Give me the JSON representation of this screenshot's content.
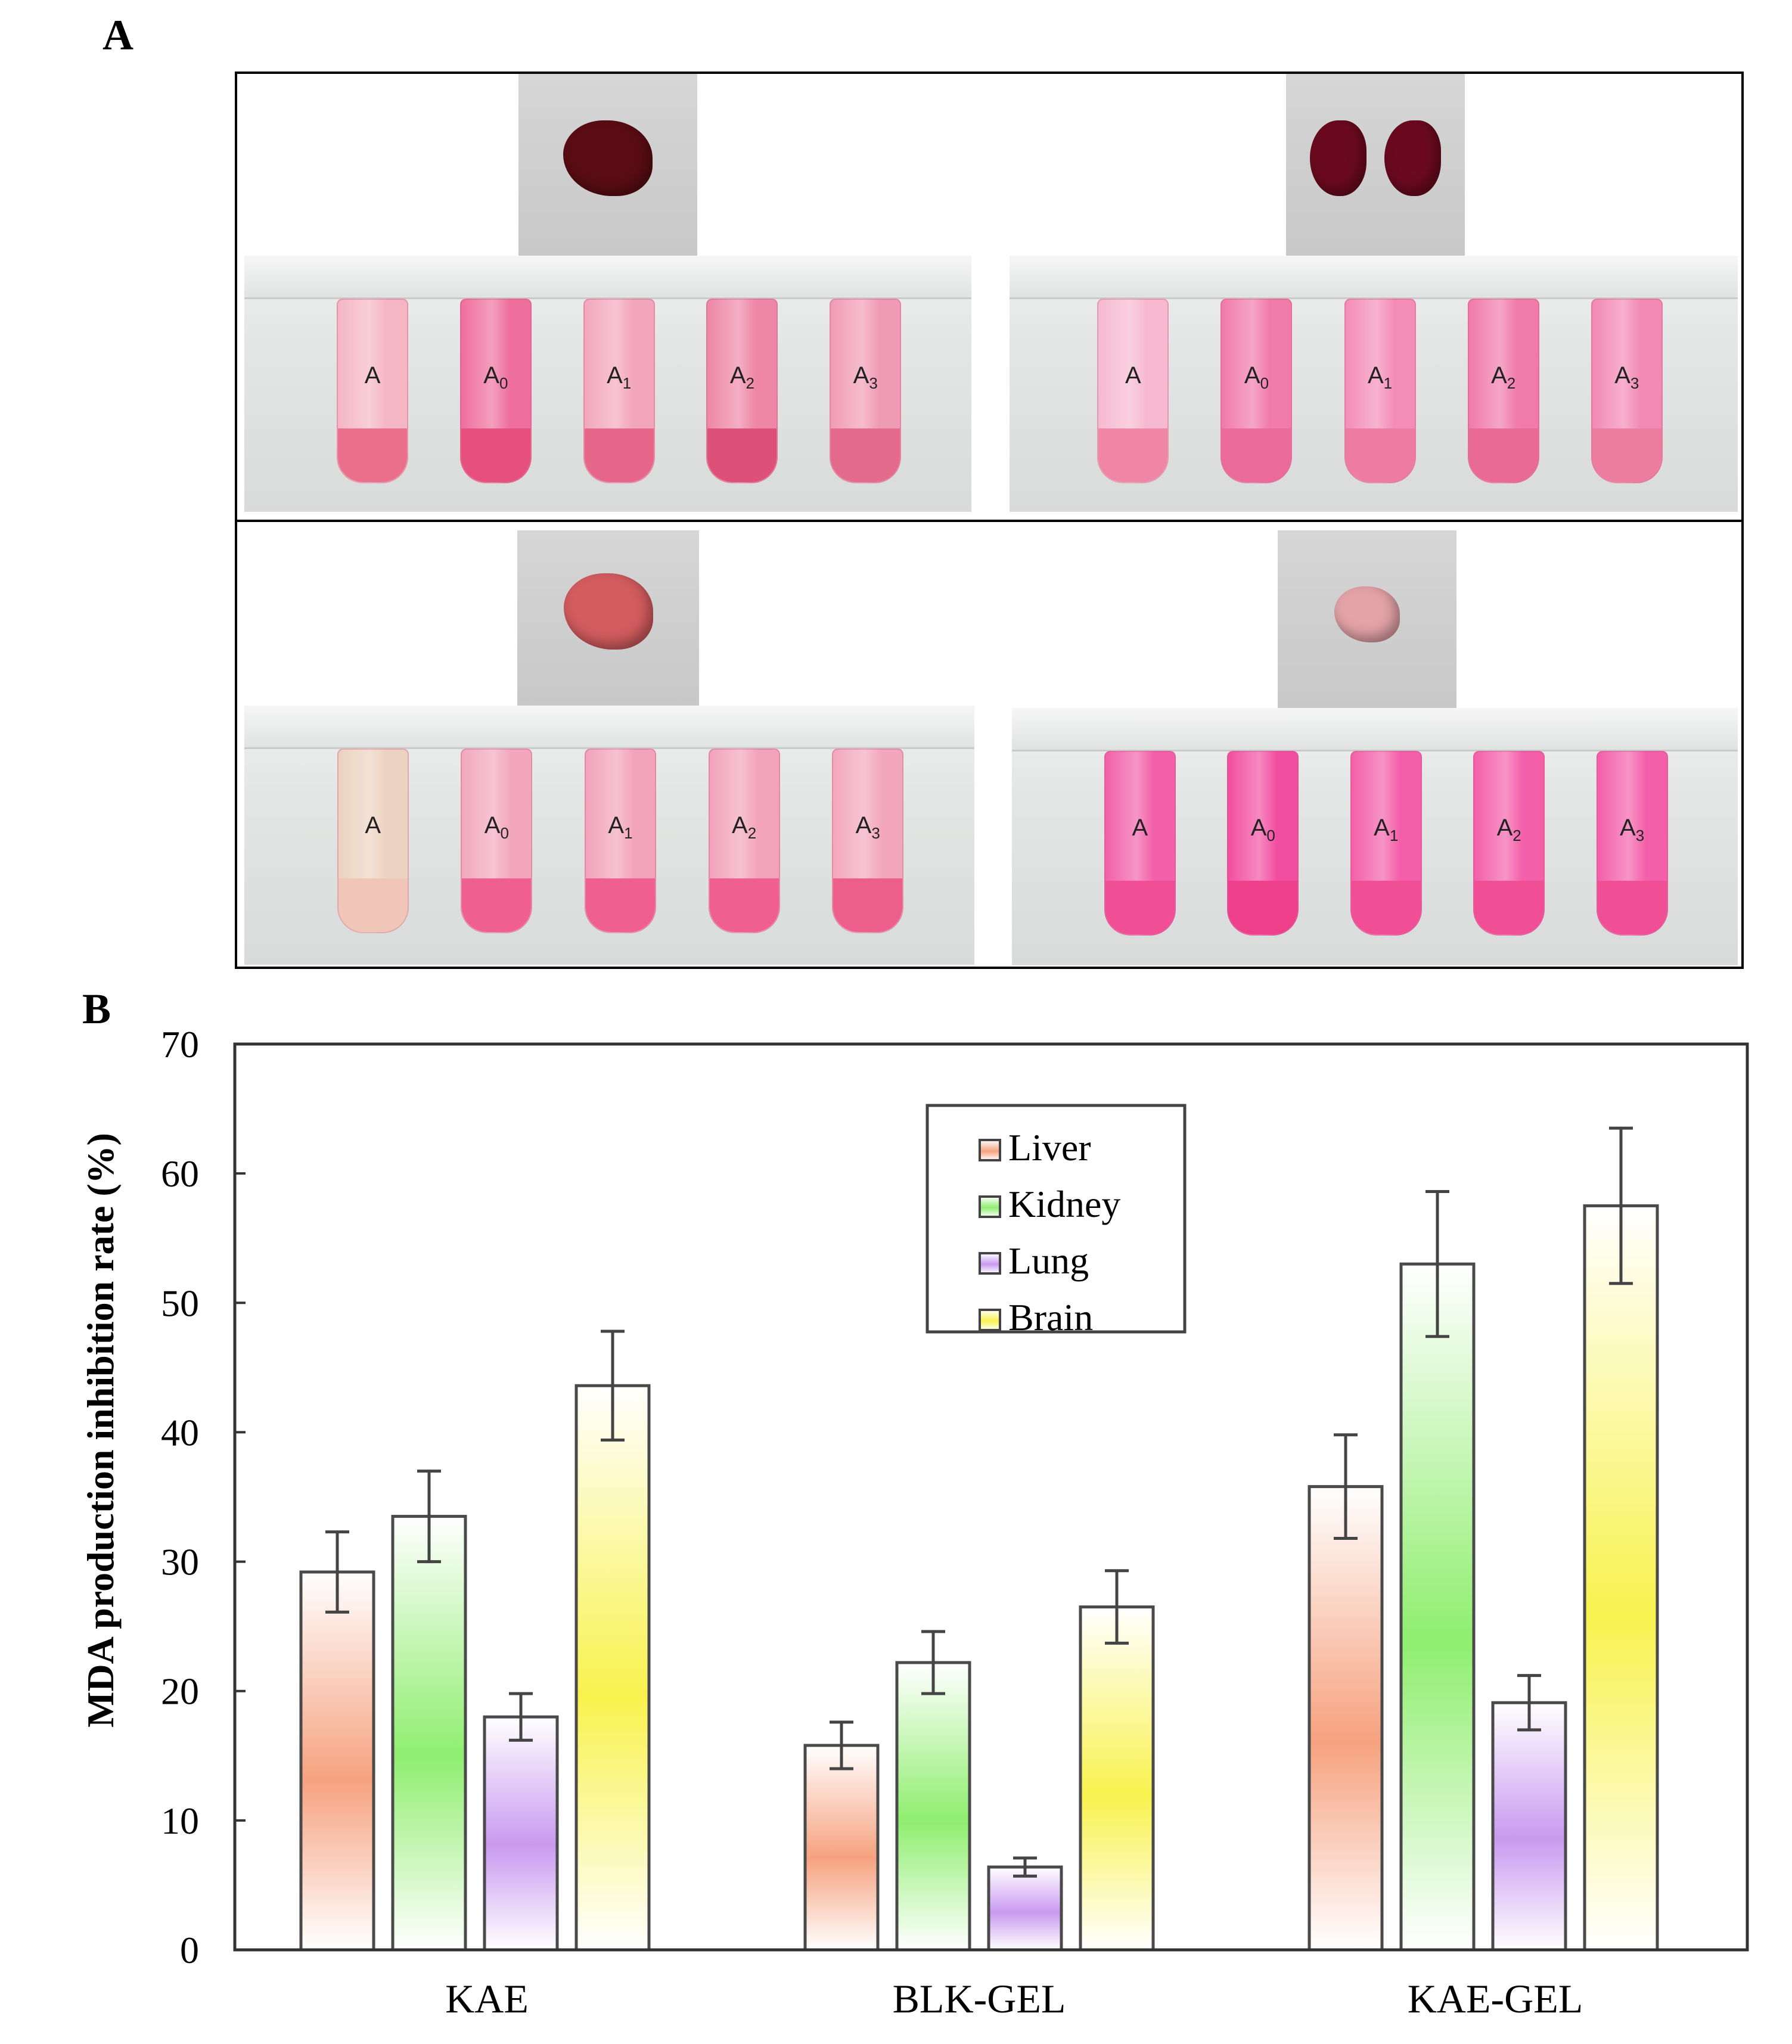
{
  "panel_a": {
    "label": "A",
    "tube_labels": [
      {
        "base": "A",
        "sub": ""
      },
      {
        "base": "A",
        "sub": "0"
      },
      {
        "base": "A",
        "sub": "1"
      },
      {
        "base": "A",
        "sub": "2"
      },
      {
        "base": "A",
        "sub": "3"
      }
    ],
    "organs": [
      {
        "name": "Liver",
        "organ_color": "#5a0d14",
        "tube_colors": [
          "#f4b6c4",
          "#ee6f9c",
          "#f2a6bc",
          "#ee86a8",
          "#f09bb6"
        ],
        "pellet_colors": [
          "#e96f8a",
          "#e5507e",
          "#e7678a",
          "#dd5078",
          "#e36a8a"
        ]
      },
      {
        "name": "Kidney",
        "organ_color": "#6b0a1e",
        "tube_colors": [
          "#f6b9cf",
          "#f07aaa",
          "#f38db6",
          "#f07aaa",
          "#f289b3"
        ],
        "pellet_colors": [
          "#ef86a6",
          "#ea6a98",
          "#ee7ba2",
          "#e96a95",
          "#ec7d9f"
        ]
      },
      {
        "name": "Lung",
        "organ_color": "#d25c5e",
        "tube_colors": [
          "#ecd2c0",
          "#f2a7bf",
          "#f2a3bc",
          "#f2a3bc",
          "#f2a7bf"
        ],
        "pellet_colors": [
          "#f0c6b8",
          "#ef5f8f",
          "#ef5f8f",
          "#ef5f8f",
          "#ec5f8c"
        ]
      },
      {
        "name": "Brain",
        "organ_color": "#e3a3a8",
        "tube_colors": [
          "#f35fa9",
          "#f24ea1",
          "#f35fa9",
          "#f35fa9",
          "#f35fa9"
        ],
        "pellet_colors": [
          "#f04f96",
          "#ee3f8b",
          "#f04f96",
          "#f04f96",
          "#f04f96"
        ]
      }
    ]
  },
  "panel_b": {
    "label": "B"
  },
  "chart_data": {
    "type": "bar",
    "title": "",
    "xlabel": "",
    "ylabel": "MDA production inhibition rate (%)",
    "ylim": [
      0,
      70
    ],
    "yticks": [
      0,
      10,
      20,
      30,
      40,
      50,
      60,
      70
    ],
    "ytick_labels": [
      "0",
      "10",
      "20",
      "30",
      "40",
      "50",
      "60",
      "70"
    ],
    "categories": [
      "KAE",
      "BLK-GEL",
      "KAE-GEL"
    ],
    "legend_position": "top-center",
    "series": [
      {
        "name": "Liver",
        "color": "#f6a27f",
        "values": [
          29.2,
          15.8,
          35.8
        ],
        "errors": [
          3.1,
          1.8,
          4.0
        ]
      },
      {
        "name": "Kidney",
        "color": "#8fee6f",
        "values": [
          33.5,
          22.2,
          53.0
        ],
        "errors": [
          3.5,
          2.4,
          5.6
        ]
      },
      {
        "name": "Lung",
        "color": "#c99af0",
        "values": [
          18.0,
          6.4,
          19.1
        ],
        "errors": [
          1.8,
          0.7,
          2.1
        ]
      },
      {
        "name": "Brain",
        "color": "#f8f24e",
        "values": [
          43.6,
          26.5,
          57.5
        ],
        "errors": [
          4.2,
          2.8,
          6.0
        ]
      }
    ]
  }
}
